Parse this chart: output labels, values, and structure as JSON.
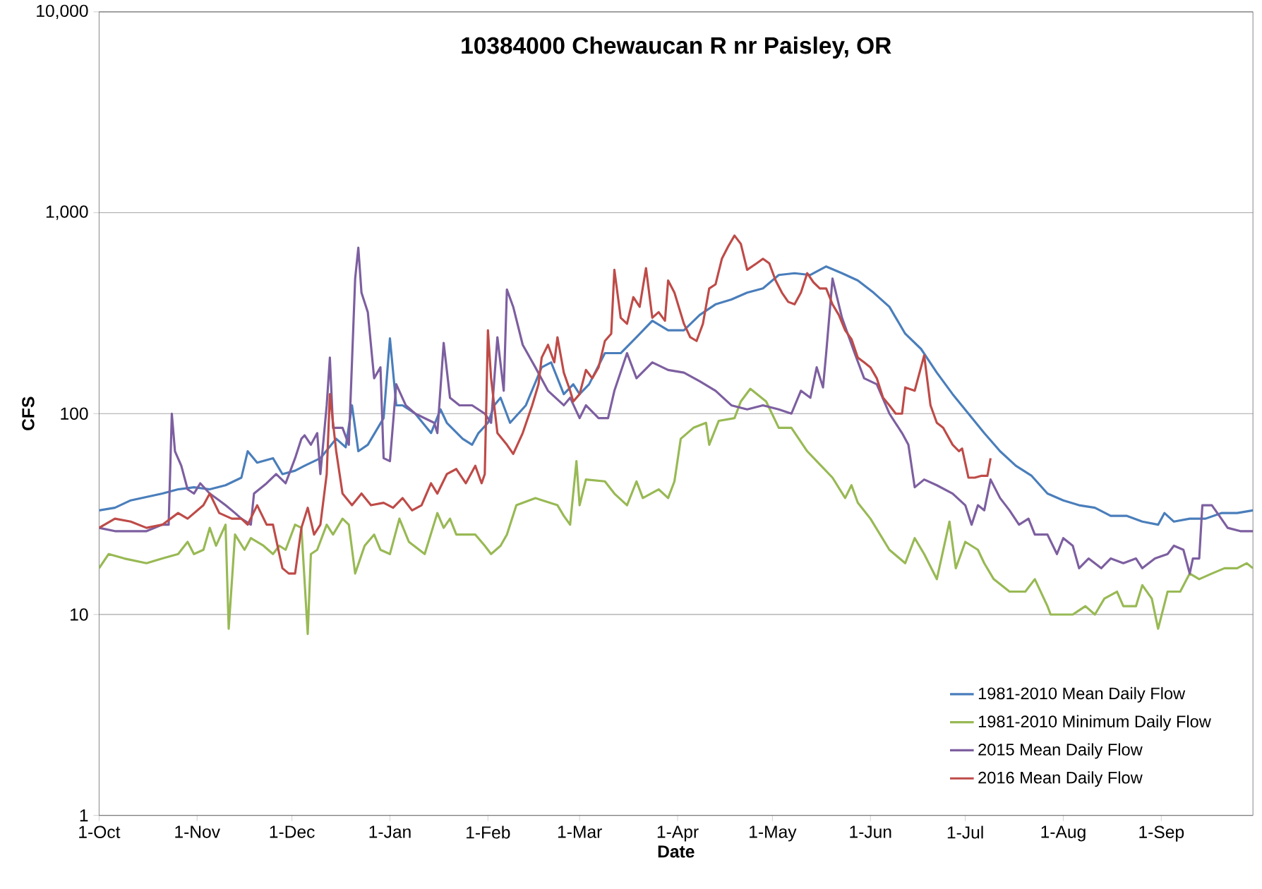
{
  "chart_data": {
    "type": "line",
    "title": "10384000  Chewaucan R nr Paisley, OR",
    "xlabel": "Date",
    "ylabel": "CFS",
    "log": "y",
    "grid": "y",
    "legend": "bottom right",
    "marker": "none",
    "line_style": "solid",
    "xlim": [
      "2015-10-01",
      "2016-09-30"
    ],
    "xticks": [
      {
        "value": "2015-10-01",
        "label": "1-Oct"
      },
      {
        "value": "2015-11-01",
        "label": "1-Nov"
      },
      {
        "value": "2015-12-01",
        "label": "1-Dec"
      },
      {
        "value": "2016-01-01",
        "label": "1-Jan"
      },
      {
        "value": "2016-02-01",
        "label": "1-Feb"
      },
      {
        "value": "2016-03-01",
        "label": "1-Mar"
      },
      {
        "value": "2016-04-01",
        "label": "1-Apr"
      },
      {
        "value": "2016-05-01",
        "label": "1-May"
      },
      {
        "value": "2016-06-01",
        "label": "1-Jun"
      },
      {
        "value": "2016-07-01",
        "label": "1-Jul"
      },
      {
        "value": "2016-08-01",
        "label": "1-Aug"
      },
      {
        "value": "2016-09-01",
        "label": "1-Sep"
      }
    ],
    "ylim": [
      1,
      10000
    ],
    "yticks": [
      {
        "value": 1,
        "label": "1"
      },
      {
        "value": 10,
        "label": "10"
      },
      {
        "value": 100,
        "label": "100"
      },
      {
        "value": 1000,
        "label": "1,000"
      },
      {
        "value": 10000,
        "label": "10,000"
      }
    ],
    "series": [
      {
        "name": "1981-2010 Mean Daily Flow",
        "color": "#4a7ebb",
        "x": [
          "2015-10-01",
          "2015-10-06",
          "2015-10-11",
          "2015-10-21",
          "2015-10-26",
          "2015-10-31",
          "2015-11-05",
          "2015-11-10",
          "2015-11-15",
          "2015-11-17",
          "2015-11-20",
          "2015-11-25",
          "2015-11-28",
          "2015-12-02",
          "2015-12-05",
          "2015-12-10",
          "2015-12-15",
          "2015-12-18",
          "2015-12-20",
          "2015-12-22",
          "2015-12-25",
          "2015-12-30",
          "2016-01-01",
          "2016-01-03",
          "2016-01-05",
          "2016-01-09",
          "2016-01-14",
          "2016-01-17",
          "2016-01-19",
          "2016-01-24",
          "2016-01-27",
          "2016-01-29",
          "2016-02-01",
          "2016-02-03",
          "2016-02-05",
          "2016-02-08",
          "2016-02-13",
          "2016-02-18",
          "2016-02-21",
          "2016-02-25",
          "2016-02-28",
          "2016-03-01",
          "2016-03-04",
          "2016-03-09",
          "2016-03-14",
          "2016-03-19",
          "2016-03-24",
          "2016-03-29",
          "2016-04-03",
          "2016-04-08",
          "2016-04-13",
          "2016-04-18",
          "2016-04-23",
          "2016-04-28",
          "2016-05-03",
          "2016-05-08",
          "2016-05-13",
          "2016-05-18",
          "2016-05-23",
          "2016-05-28",
          "2016-06-02",
          "2016-06-07",
          "2016-06-12",
          "2016-06-17",
          "2016-06-22",
          "2016-06-27",
          "2016-07-02",
          "2016-07-07",
          "2016-07-12",
          "2016-07-17",
          "2016-07-22",
          "2016-07-27",
          "2016-08-01",
          "2016-08-06",
          "2016-08-11",
          "2016-08-16",
          "2016-08-21",
          "2016-08-26",
          "2016-08-31",
          "2016-09-02",
          "2016-09-05",
          "2016-09-10",
          "2016-09-15",
          "2016-09-20",
          "2016-09-25",
          "2016-09-30"
        ],
        "values": [
          33,
          34,
          37,
          40,
          42,
          43,
          42,
          44,
          48,
          65,
          57,
          60,
          50,
          52,
          55,
          60,
          75,
          68,
          110,
          65,
          70,
          95,
          237,
          110,
          110,
          100,
          80,
          105,
          90,
          75,
          70,
          80,
          90,
          110,
          120,
          90,
          110,
          170,
          180,
          125,
          140,
          125,
          140,
          200,
          200,
          240,
          290,
          260,
          260,
          310,
          350,
          370,
          400,
          420,
          490,
          500,
          490,
          540,
          500,
          460,
          400,
          340,
          250,
          210,
          160,
          125,
          100,
          80,
          65,
          55,
          49,
          40,
          37,
          35,
          34,
          31,
          31,
          29,
          28,
          32,
          29,
          30,
          30,
          32,
          32,
          33
        ]
      },
      {
        "name": "1981-2010 Minimum Daily Flow",
        "color": "#98b954",
        "x": [
          "2015-10-01",
          "2015-10-04",
          "2015-10-09",
          "2015-10-16",
          "2015-10-21",
          "2015-10-26",
          "2015-10-29",
          "2015-10-31",
          "2015-11-03",
          "2015-11-05",
          "2015-11-07",
          "2015-11-10",
          "2015-11-11",
          "2015-11-13",
          "2015-11-16",
          "2015-11-18",
          "2015-11-22",
          "2015-11-25",
          "2015-11-27",
          "2015-11-29",
          "2015-12-02",
          "2015-12-04",
          "2015-12-06",
          "2015-12-07",
          "2015-12-09",
          "2015-12-12",
          "2015-12-14",
          "2015-12-17",
          "2015-12-19",
          "2015-12-21",
          "2015-12-24",
          "2015-12-27",
          "2015-12-29",
          "2016-01-01",
          "2016-01-04",
          "2016-01-07",
          "2016-01-12",
          "2016-01-16",
          "2016-01-18",
          "2016-01-20",
          "2016-01-22",
          "2016-01-25",
          "2016-01-28",
          "2016-01-31",
          "2016-02-02",
          "2016-02-05",
          "2016-02-07",
          "2016-02-10",
          "2016-02-16",
          "2016-02-23",
          "2016-02-25",
          "2016-02-27",
          "2016-02-29",
          "2016-03-01",
          "2016-03-03",
          "2016-03-09",
          "2016-03-12",
          "2016-03-16",
          "2016-03-19",
          "2016-03-21",
          "2016-03-26",
          "2016-03-29",
          "2016-03-31",
          "2016-04-02",
          "2016-04-06",
          "2016-04-10",
          "2016-04-11",
          "2016-04-14",
          "2016-04-19",
          "2016-04-21",
          "2016-04-24",
          "2016-04-29",
          "2016-05-03",
          "2016-05-07",
          "2016-05-12",
          "2016-05-15",
          "2016-05-20",
          "2016-05-24",
          "2016-05-26",
          "2016-05-28",
          "2016-06-01",
          "2016-06-07",
          "2016-06-12",
          "2016-06-15",
          "2016-06-18",
          "2016-06-22",
          "2016-06-26",
          "2016-06-28",
          "2016-07-01",
          "2016-07-05",
          "2016-07-07",
          "2016-07-10",
          "2016-07-15",
          "2016-07-20",
          "2016-07-23",
          "2016-07-27",
          "2016-07-28",
          "2016-08-04",
          "2016-08-08",
          "2016-08-11",
          "2016-08-14",
          "2016-08-18",
          "2016-08-20",
          "2016-08-24",
          "2016-08-26",
          "2016-08-29",
          "2016-08-31",
          "2016-09-03",
          "2016-09-07",
          "2016-09-10",
          "2016-09-13",
          "2016-09-17",
          "2016-09-21",
          "2016-09-25",
          "2016-09-28",
          "2016-09-30"
        ],
        "values": [
          17,
          20,
          19,
          18,
          19,
          20,
          23,
          20,
          21,
          27,
          22,
          28,
          8.5,
          25,
          21,
          24,
          22,
          20,
          22,
          21,
          28,
          27,
          8,
          20,
          21,
          28,
          25,
          30,
          28,
          16,
          22,
          25,
          21,
          20,
          30,
          23,
          20,
          32,
          27,
          30,
          25,
          25,
          25,
          22,
          20,
          22,
          25,
          35,
          38,
          35,
          31,
          28,
          58,
          35,
          47,
          46,
          40,
          35,
          46,
          38,
          42,
          38,
          46,
          75,
          85,
          90,
          70,
          92,
          95,
          115,
          133,
          115,
          85,
          85,
          65,
          58,
          48,
          38,
          44,
          36,
          30,
          21,
          18,
          24,
          20,
          15,
          29,
          17,
          23,
          21,
          18,
          15,
          13,
          13,
          15,
          11,
          10,
          10,
          11,
          10,
          12,
          13,
          11,
          11,
          14,
          12,
          8.5,
          13,
          13,
          16,
          15,
          16,
          17,
          17,
          18,
          17
        ]
      },
      {
        "name": "2015 Mean Daily Flow",
        "color": "#7d5fa0",
        "x": [
          "2015-10-01",
          "2015-10-06",
          "2015-10-16",
          "2015-10-21",
          "2015-10-23",
          "2015-10-24",
          "2015-10-25",
          "2015-10-27",
          "2015-10-29",
          "2015-10-31",
          "2015-11-02",
          "2015-11-05",
          "2015-11-08",
          "2015-11-10",
          "2015-11-13",
          "2015-11-15",
          "2015-11-18",
          "2015-11-19",
          "2015-11-23",
          "2015-11-26",
          "2015-11-29",
          "2015-12-02",
          "2015-12-04",
          "2015-12-05",
          "2015-12-07",
          "2015-12-09",
          "2015-12-10",
          "2015-12-12",
          "2015-12-13",
          "2015-12-14",
          "2015-12-17",
          "2015-12-19",
          "2015-12-21",
          "2015-12-22",
          "2015-12-23",
          "2015-12-25",
          "2015-12-27",
          "2015-12-29",
          "2015-12-30",
          "2016-01-01",
          "2016-01-03",
          "2016-01-06",
          "2016-01-09",
          "2016-01-15",
          "2016-01-16",
          "2016-01-18",
          "2016-01-20",
          "2016-01-23",
          "2016-01-27",
          "2016-01-31",
          "2016-02-02",
          "2016-02-04",
          "2016-02-06",
          "2016-02-07",
          "2016-02-09",
          "2016-02-12",
          "2016-02-16",
          "2016-02-20",
          "2016-02-25",
          "2016-02-27",
          "2016-03-01",
          "2016-03-03",
          "2016-03-07",
          "2016-03-10",
          "2016-03-12",
          "2016-03-16",
          "2016-03-19",
          "2016-03-24",
          "2016-03-29",
          "2016-04-03",
          "2016-04-08",
          "2016-04-13",
          "2016-04-18",
          "2016-04-23",
          "2016-04-28",
          "2016-05-03",
          "2016-05-07",
          "2016-05-10",
          "2016-05-13",
          "2016-05-15",
          "2016-05-17",
          "2016-05-18",
          "2016-05-20",
          "2016-05-23",
          "2016-05-27",
          "2016-05-30",
          "2016-06-03",
          "2016-06-07",
          "2016-06-11",
          "2016-06-13",
          "2016-06-15",
          "2016-06-18",
          "2016-06-22",
          "2016-06-27",
          "2016-07-01",
          "2016-07-03",
          "2016-07-05",
          "2016-07-07",
          "2016-07-09",
          "2016-07-12",
          "2016-07-15",
          "2016-07-18",
          "2016-07-21",
          "2016-07-23",
          "2016-07-27",
          "2016-07-30",
          "2016-08-01",
          "2016-08-04",
          "2016-08-06",
          "2016-08-09",
          "2016-08-13",
          "2016-08-16",
          "2016-08-20",
          "2016-08-24",
          "2016-08-26",
          "2016-08-30",
          "2016-09-03",
          "2016-09-05",
          "2016-09-08",
          "2016-09-10",
          "2016-09-11",
          "2016-09-13",
          "2016-09-14",
          "2016-09-17",
          "2016-09-20",
          "2016-09-22",
          "2016-09-26",
          "2016-09-30"
        ],
        "values": [
          27,
          26,
          26,
          28,
          28,
          100,
          65,
          55,
          42,
          40,
          45,
          40,
          37,
          35,
          32,
          30,
          28,
          40,
          45,
          50,
          45,
          60,
          75,
          78,
          70,
          80,
          50,
          110,
          190,
          85,
          85,
          70,
          470,
          670,
          400,
          320,
          150,
          170,
          60,
          58,
          140,
          110,
          100,
          90,
          80,
          225,
          120,
          110,
          110,
          100,
          90,
          240,
          130,
          415,
          340,
          220,
          170,
          130,
          110,
          120,
          95,
          110,
          95,
          95,
          130,
          200,
          150,
          180,
          165,
          160,
          145,
          130,
          110,
          105,
          110,
          105,
          100,
          130,
          120,
          170,
          135,
          200,
          470,
          300,
          200,
          150,
          140,
          100,
          80,
          70,
          43,
          47,
          44,
          40,
          35,
          28,
          35,
          33,
          47,
          38,
          33,
          28,
          30,
          25,
          25,
          20,
          24,
          22,
          17,
          19,
          17,
          19,
          18,
          19,
          17,
          19,
          20,
          22,
          21,
          16,
          19,
          19,
          35,
          35,
          30,
          27,
          26,
          26
        ]
      },
      {
        "name": "2016 Mean Daily Flow",
        "color": "#be4b48",
        "x": [
          "2015-10-01",
          "2015-10-06",
          "2015-10-11",
          "2015-10-16",
          "2015-10-21",
          "2015-10-26",
          "2015-10-29",
          "2015-11-03",
          "2015-11-05",
          "2015-11-08",
          "2015-11-12",
          "2015-11-15",
          "2015-11-17",
          "2015-11-20",
          "2015-11-23",
          "2015-11-25",
          "2015-11-27",
          "2015-11-28",
          "2015-11-30",
          "2015-12-02",
          "2015-12-04",
          "2015-12-06",
          "2015-12-08",
          "2015-12-10",
          "2015-12-12",
          "2015-12-13",
          "2015-12-15",
          "2015-12-17",
          "2015-12-20",
          "2015-12-23",
          "2015-12-26",
          "2015-12-30",
          "2016-01-02",
          "2016-01-05",
          "2016-01-08",
          "2016-01-11",
          "2016-01-14",
          "2016-01-16",
          "2016-01-19",
          "2016-01-22",
          "2016-01-25",
          "2016-01-28",
          "2016-01-30",
          "2016-01-31",
          "2016-02-01",
          "2016-02-02",
          "2016-02-04",
          "2016-02-07",
          "2016-02-09",
          "2016-02-12",
          "2016-02-15",
          "2016-02-17",
          "2016-02-18",
          "2016-02-20",
          "2016-02-22",
          "2016-02-23",
          "2016-02-25",
          "2016-02-27",
          "2016-02-28",
          "2016-03-01",
          "2016-03-03",
          "2016-03-05",
          "2016-03-07",
          "2016-03-09",
          "2016-03-11",
          "2016-03-12",
          "2016-03-14",
          "2016-03-16",
          "2016-03-18",
          "2016-03-20",
          "2016-03-22",
          "2016-03-24",
          "2016-03-26",
          "2016-03-28",
          "2016-03-29",
          "2016-03-31",
          "2016-04-03",
          "2016-04-05",
          "2016-04-07",
          "2016-04-09",
          "2016-04-11",
          "2016-04-13",
          "2016-04-15",
          "2016-04-17",
          "2016-04-19",
          "2016-04-21",
          "2016-04-23",
          "2016-04-26",
          "2016-04-28",
          "2016-04-30",
          "2016-05-02",
          "2016-05-04",
          "2016-05-06",
          "2016-05-08",
          "2016-05-10",
          "2016-05-12",
          "2016-05-14",
          "2016-05-16",
          "2016-05-18",
          "2016-05-20",
          "2016-05-22",
          "2016-05-24",
          "2016-05-26",
          "2016-05-28",
          "2016-05-30",
          "2016-06-01",
          "2016-06-03",
          "2016-06-05",
          "2016-06-07",
          "2016-06-09",
          "2016-06-11",
          "2016-06-12",
          "2016-06-15",
          "2016-06-18",
          "2016-06-20",
          "2016-06-22",
          "2016-06-24",
          "2016-06-27",
          "2016-06-29",
          "2016-06-30",
          "2016-07-02",
          "2016-07-04",
          "2016-07-06",
          "2016-07-08",
          "2016-07-09"
        ],
        "values": [
          27,
          30,
          29,
          27,
          28,
          32,
          30,
          35,
          40,
          32,
          30,
          30,
          28,
          35,
          28,
          28,
          20,
          17,
          16,
          16,
          27,
          34,
          25,
          28,
          50,
          125,
          65,
          40,
          35,
          40,
          35,
          36,
          34,
          38,
          33,
          35,
          45,
          40,
          50,
          53,
          45,
          55,
          45,
          50,
          260,
          150,
          80,
          70,
          63,
          80,
          110,
          140,
          190,
          220,
          180,
          240,
          160,
          130,
          115,
          125,
          165,
          150,
          170,
          230,
          250,
          520,
          300,
          280,
          380,
          340,
          530,
          300,
          320,
          290,
          460,
          400,
          280,
          240,
          230,
          280,
          420,
          440,
          590,
          680,
          770,
          700,
          520,
          560,
          590,
          560,
          460,
          400,
          360,
          350,
          400,
          500,
          450,
          420,
          420,
          350,
          310,
          260,
          235,
          190,
          180,
          170,
          150,
          120,
          110,
          100,
          100,
          135,
          130,
          195,
          110,
          90,
          85,
          70,
          65,
          67,
          48,
          48,
          49,
          49,
          60
        ]
      }
    ]
  }
}
